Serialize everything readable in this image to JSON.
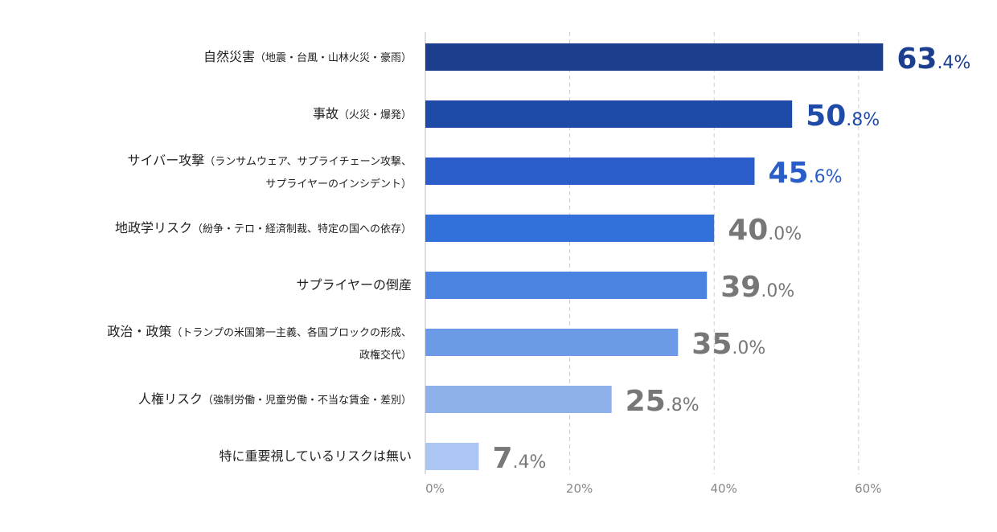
{
  "chart_data": {
    "type": "bar",
    "orientation": "horizontal",
    "title": "",
    "xlabel": "",
    "ylabel": "",
    "xlim": [
      0,
      70
    ],
    "grid": true,
    "x_ticks": [
      0,
      20,
      40,
      60
    ],
    "x_tick_labels": [
      "0%",
      "20%",
      "40%",
      "60%"
    ],
    "categories": [
      {
        "main": "自然災害",
        "sub_lines": [
          "（地震・台風・山林火災・豪雨）"
        ]
      },
      {
        "main": "事故",
        "sub_lines": [
          "（火災・爆発）"
        ]
      },
      {
        "main": "サイバー攻撃",
        "sub_lines": [
          "（ランサムウェア、サプライチェーン攻撃、",
          "サプライヤーのインシデント）"
        ]
      },
      {
        "main": "地政学リスク",
        "sub_lines": [
          "（紛争・テロ・経済制裁、特定の国への依存）"
        ]
      },
      {
        "main": "サプライヤーの倒産",
        "sub_lines": []
      },
      {
        "main": "政治・政策",
        "sub_lines": [
          "（トランプの米国第一主義、各国ブロックの形成、",
          "政権交代）"
        ]
      },
      {
        "main": "人権リスク",
        "sub_lines": [
          "（強制労働・児童労働・不当な賃金・差別）"
        ]
      },
      {
        "main": "特に重要視しているリスクは無い",
        "sub_lines": []
      }
    ],
    "values": [
      63.4,
      50.8,
      45.6,
      40.0,
      39.0,
      35.0,
      25.8,
      7.4
    ],
    "value_labels": [
      {
        "int": "63",
        "dec": ".4%"
      },
      {
        "int": "50",
        "dec": ".8%"
      },
      {
        "int": "45",
        "dec": ".6%"
      },
      {
        "int": "40",
        "dec": ".0%"
      },
      {
        "int": "39",
        "dec": ".0%"
      },
      {
        "int": "35",
        "dec": ".0%"
      },
      {
        "int": "25",
        "dec": ".8%"
      },
      {
        "int": "7",
        "dec": ".4%"
      }
    ],
    "bar_colors": [
      "#1b3f8e",
      "#1f4ba8",
      "#2a5dc9",
      "#3371da",
      "#4a84e0",
      "#6b9be6",
      "#8eb1ec",
      "#abc6f2"
    ],
    "label_colors": [
      "#1b3f8e",
      "#1f4ba8",
      "#2a5dc9",
      "#777777",
      "#777777",
      "#777777",
      "#777777",
      "#777777"
    ]
  }
}
